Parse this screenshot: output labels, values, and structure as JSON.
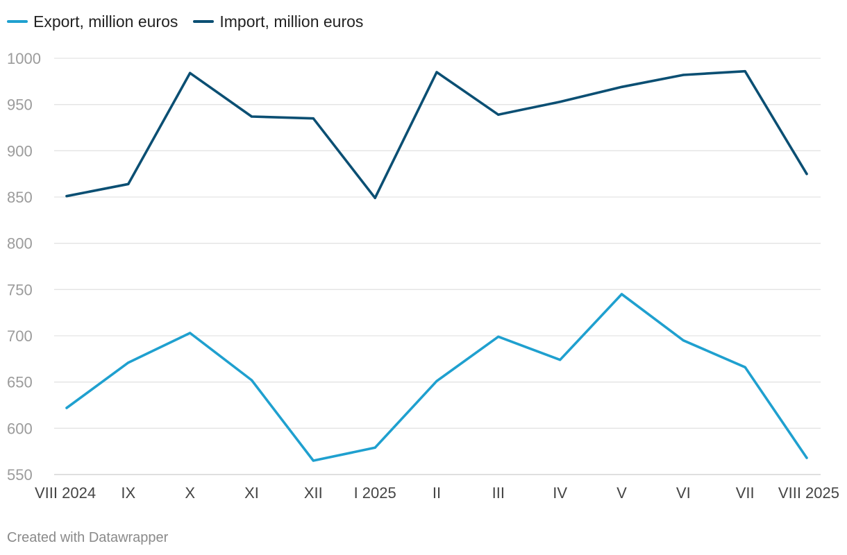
{
  "chart_data": {
    "type": "line",
    "title": "",
    "xlabel": "",
    "ylabel": "",
    "categories": [
      "VIII 2024",
      "IX",
      "X",
      "XI",
      "XII",
      "I 2025",
      "II",
      "III",
      "IV",
      "V",
      "VI",
      "VII",
      "VIII 2025"
    ],
    "y_ticks": [
      550,
      600,
      650,
      700,
      750,
      800,
      850,
      900,
      950,
      1000
    ],
    "ylim": [
      550,
      1000
    ],
    "grid": true,
    "legend_position": "top-left",
    "series": [
      {
        "name": "Export, million euros",
        "color": "#1fa0cf",
        "values": [
          622,
          671,
          703,
          652,
          565,
          579,
          651,
          699,
          674,
          745,
          695,
          666,
          568
        ]
      },
      {
        "name": "Import, million euros",
        "color": "#0b4f73",
        "values": [
          851,
          864,
          984,
          937,
          935,
          849,
          985,
          939,
          953,
          969,
          982,
          986,
          875
        ]
      }
    ]
  },
  "footer": {
    "credit": "Created with Datawrapper"
  }
}
